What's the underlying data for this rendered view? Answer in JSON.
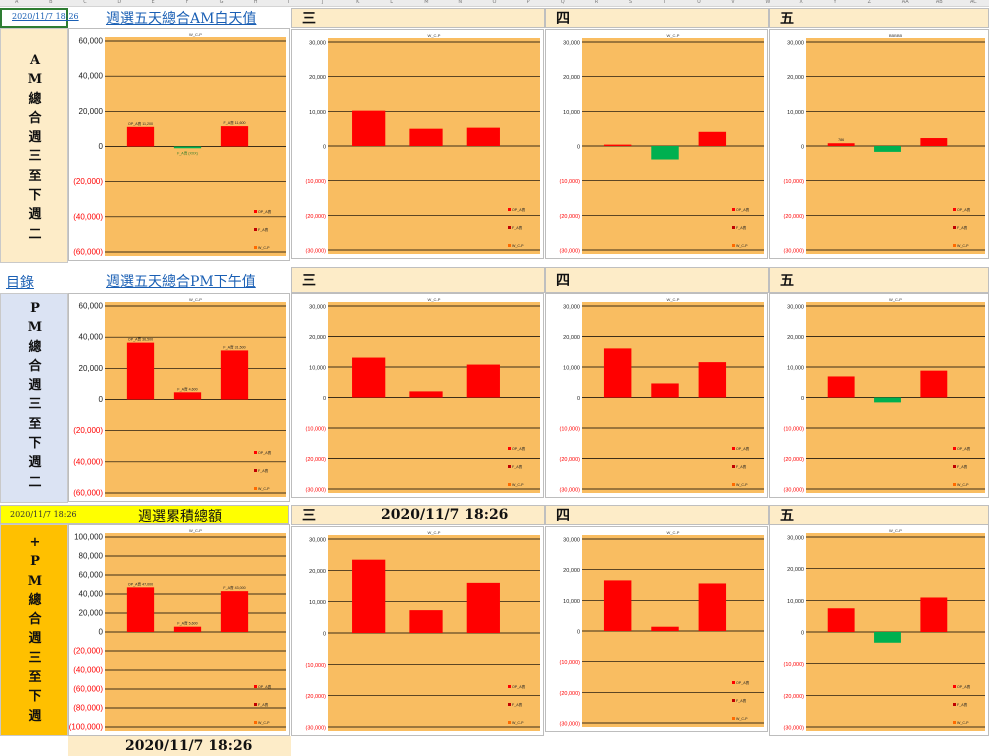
{
  "colors": {
    "plot_bg": "#f9bd61",
    "bar_pos": "#ff0000",
    "bar_neg": "#00b050",
    "side_am": "#fdecc8",
    "side_pm": "#dbe3f3",
    "side_tot": "#ffc000",
    "title_yellow": "#ffff00",
    "neg_tick": "#ff0000"
  },
  "column_letters": [
    "A",
    "B",
    "C",
    "D",
    "E",
    "F",
    "G",
    "H",
    "I",
    "J",
    "K",
    "L",
    "M",
    "N",
    "O",
    "P",
    "Q",
    "R",
    "S",
    "T",
    "U",
    "V",
    "W",
    "X",
    "Y",
    "Z",
    "AA",
    "AB",
    "AC"
  ],
  "top": {
    "timestamp_link": "2020/11/7 18:26",
    "am_title_link": "週選五天總合AM白天值",
    "pm_title_link": "週選五天總合PM下午值",
    "index_link": "目錄",
    "row3_timestamp": "2020/11/7 18:26",
    "row3_title": "週選累積總額",
    "row3_stamp": "2020/11/7 18:26",
    "bottom_stamp": "2020/11/7 18:26"
  },
  "day_headers": {
    "wed": "三",
    "thu": "四",
    "fri": "五"
  },
  "side_labels": {
    "am": "A\nM\n總\n合\n週\n三\n至\n下\n週\n二",
    "pm": "P\nM\n總\n合\n週\n三\n至\n下\n週\n二",
    "total": "+\nP\nM\n總\n合\n週\n三\n至\n下\n週"
  },
  "chart_data": [
    {
      "id": "am_total",
      "type": "bar",
      "title": "W_C-P",
      "ylim": [
        -60000,
        60000
      ],
      "yticks": [
        "60,000",
        "40,000",
        "20,000",
        "0",
        "(20,000)",
        "(40,000)",
        "(60,000)"
      ],
      "values": [
        11200,
        -1000,
        11600
      ],
      "data_labels": [
        "OP_A賣 11,200",
        "F_A賣 (XXX)",
        "F_A賣 11,600"
      ],
      "legend": [
        "OP_A賣",
        "F_A賣",
        "W_C-P"
      ]
    },
    {
      "id": "am_wed",
      "type": "bar",
      "title": "W_C-P",
      "ylim": [
        -30000,
        30000
      ],
      "yticks": [
        "30,000",
        "20,000",
        "10,000",
        "0",
        "(10,000)",
        "(20,000)",
        "(30,000)"
      ],
      "values": [
        10200,
        5000,
        5300
      ],
      "data_labels": [],
      "legend": [
        "OP_A賣",
        "F_A賣",
        "W_C-P"
      ]
    },
    {
      "id": "am_thu",
      "type": "bar",
      "title": "W_C-P",
      "ylim": [
        -30000,
        30000
      ],
      "yticks": [
        "30,000",
        "20,000",
        "10,000",
        "0",
        "(10,000)",
        "(20,000)",
        "(30,000)"
      ],
      "values": [
        400,
        -3900,
        4100
      ],
      "data_labels": [],
      "legend": [
        "OP_A賣",
        "F_A賣",
        "W_C-P"
      ]
    },
    {
      "id": "am_fri",
      "type": "bar",
      "title": "BBBBB",
      "ylim": [
        -30000,
        30000
      ],
      "yticks": [
        "30,000",
        "20,000",
        "10,000",
        "0",
        "(10,000)",
        "(20,000)",
        "(30,000)"
      ],
      "values": [
        800,
        -1700,
        2300
      ],
      "data_labels": [
        "786",
        "",
        ""
      ],
      "legend": [
        "OP_A賣",
        "F_A賣",
        "W_C-P"
      ]
    },
    {
      "id": "pm_total",
      "type": "bar",
      "title": "W_C-P",
      "ylim": [
        -60000,
        60000
      ],
      "yticks": [
        "60,000",
        "40,000",
        "20,000",
        "0",
        "(20,000)",
        "(40,000)",
        "(60,000)"
      ],
      "values": [
        36500,
        4600,
        31500
      ],
      "data_labels": [
        "OP_A賣 36,500",
        "F_A賣 4,600",
        "F_A賣 31,500"
      ],
      "legend": [
        "OP_A賣",
        "F_A賣",
        "W_C-P"
      ]
    },
    {
      "id": "pm_wed",
      "type": "bar",
      "title": "W_C-P",
      "ylim": [
        -30000,
        30000
      ],
      "yticks": [
        "30,000",
        "20,000",
        "10,000",
        "0",
        "(10,000)",
        "(20,000)",
        "(30,000)"
      ],
      "values": [
        13100,
        2000,
        10800
      ],
      "data_labels": [],
      "legend": [
        "OP_A賣",
        "F_A賣",
        "W_C-P"
      ]
    },
    {
      "id": "pm_thu",
      "type": "bar",
      "title": "W_C-P",
      "ylim": [
        -30000,
        30000
      ],
      "yticks": [
        "30,000",
        "20,000",
        "10,000",
        "0",
        "(10,000)",
        "(20,000)",
        "(30,000)"
      ],
      "values": [
        16100,
        4600,
        11600
      ],
      "data_labels": [],
      "legend": [
        "OP_A賣",
        "F_A賣",
        "W_C-P"
      ]
    },
    {
      "id": "pm_fri",
      "type": "bar",
      "title": "W_C-P",
      "ylim": [
        -30000,
        30000
      ],
      "yticks": [
        "30,000",
        "20,000",
        "10,000",
        "0",
        "(10,000)",
        "(20,000)",
        "(30,000)"
      ],
      "values": [
        6900,
        -1600,
        8800
      ],
      "data_labels": [],
      "legend": [
        "OP_A賣",
        "F_A賣",
        "W_C-P"
      ]
    },
    {
      "id": "tot_total",
      "type": "bar",
      "title": "W_C-P",
      "ylim": [
        -100000,
        100000
      ],
      "yticks": [
        "100,000",
        "80,000",
        "60,000",
        "40,000",
        "20,000",
        "0",
        "(20,000)",
        "(40,000)",
        "(60,000)",
        "(80,000)",
        "(100,000)"
      ],
      "values": [
        47000,
        5600,
        43000
      ],
      "data_labels": [
        "OP_A賣 47,000",
        "F_A賣 5,600",
        "F_A賣 43,000"
      ],
      "legend": [
        "OP_A賣",
        "F_A賣",
        "W_C-P"
      ]
    },
    {
      "id": "tot_wed",
      "type": "bar",
      "title": "W_C-P",
      "ylim": [
        -30000,
        30000
      ],
      "yticks": [
        "30,000",
        "20,000",
        "10,000",
        "0",
        "(10,000)",
        "(20,000)",
        "(30,000)"
      ],
      "values": [
        23400,
        7300,
        16000
      ],
      "data_labels": [],
      "legend": [
        "OP_A賣",
        "F_A賣",
        "W_C-P"
      ]
    },
    {
      "id": "tot_thu",
      "type": "bar",
      "title": "W_C-P",
      "ylim": [
        -30000,
        30000
      ],
      "yticks": [
        "30,000",
        "20,000",
        "10,000",
        "0",
        "(10,000)",
        "(20,000)",
        "(30,000)"
      ],
      "values": [
        16500,
        1400,
        15500
      ],
      "data_labels": [],
      "legend": [
        "OP_A賣",
        "F_A賣",
        "W_C-P"
      ]
    },
    {
      "id": "tot_fri",
      "type": "bar",
      "title": "W_C-P",
      "ylim": [
        -30000,
        30000
      ],
      "yticks": [
        "30,000",
        "20,000",
        "10,000",
        "0",
        "(10,000)",
        "(20,000)",
        "(30,000)"
      ],
      "values": [
        7500,
        -3400,
        10900
      ],
      "data_labels": [],
      "legend": [
        "OP_A賣",
        "F_A賣",
        "W_C-P"
      ]
    }
  ]
}
